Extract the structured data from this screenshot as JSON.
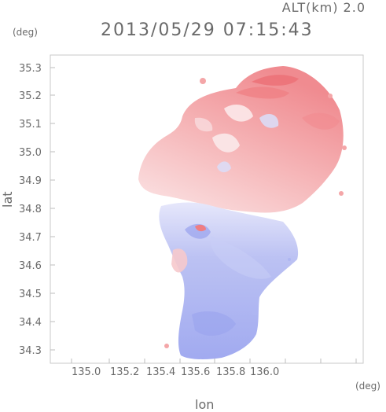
{
  "header": {
    "altitude": "ALT(km) 2.0",
    "timestamp": "2013/05/29 07:15:43"
  },
  "axes": {
    "y_unit": "(deg)",
    "x_unit": "(deg)",
    "y_label": "lat",
    "x_label": "lon",
    "x_ticks": [
      "135.0",
      "135.2",
      "135.4",
      "135.6",
      "135.8",
      "136.0"
    ],
    "y_ticks": [
      "35.3",
      "35.2",
      "35.1",
      "35.0",
      "34.9",
      "34.8",
      "34.7",
      "34.6",
      "34.5",
      "34.4",
      "34.3"
    ]
  },
  "map": {
    "colors": {
      "away": "#f4a6a8",
      "away_strong": "#ef7d82",
      "toward": "#aeb6f2",
      "toward_strong": "#8f99ec",
      "near_zero": "#f6f2f4",
      "frame": "#c8c8c8"
    }
  }
}
